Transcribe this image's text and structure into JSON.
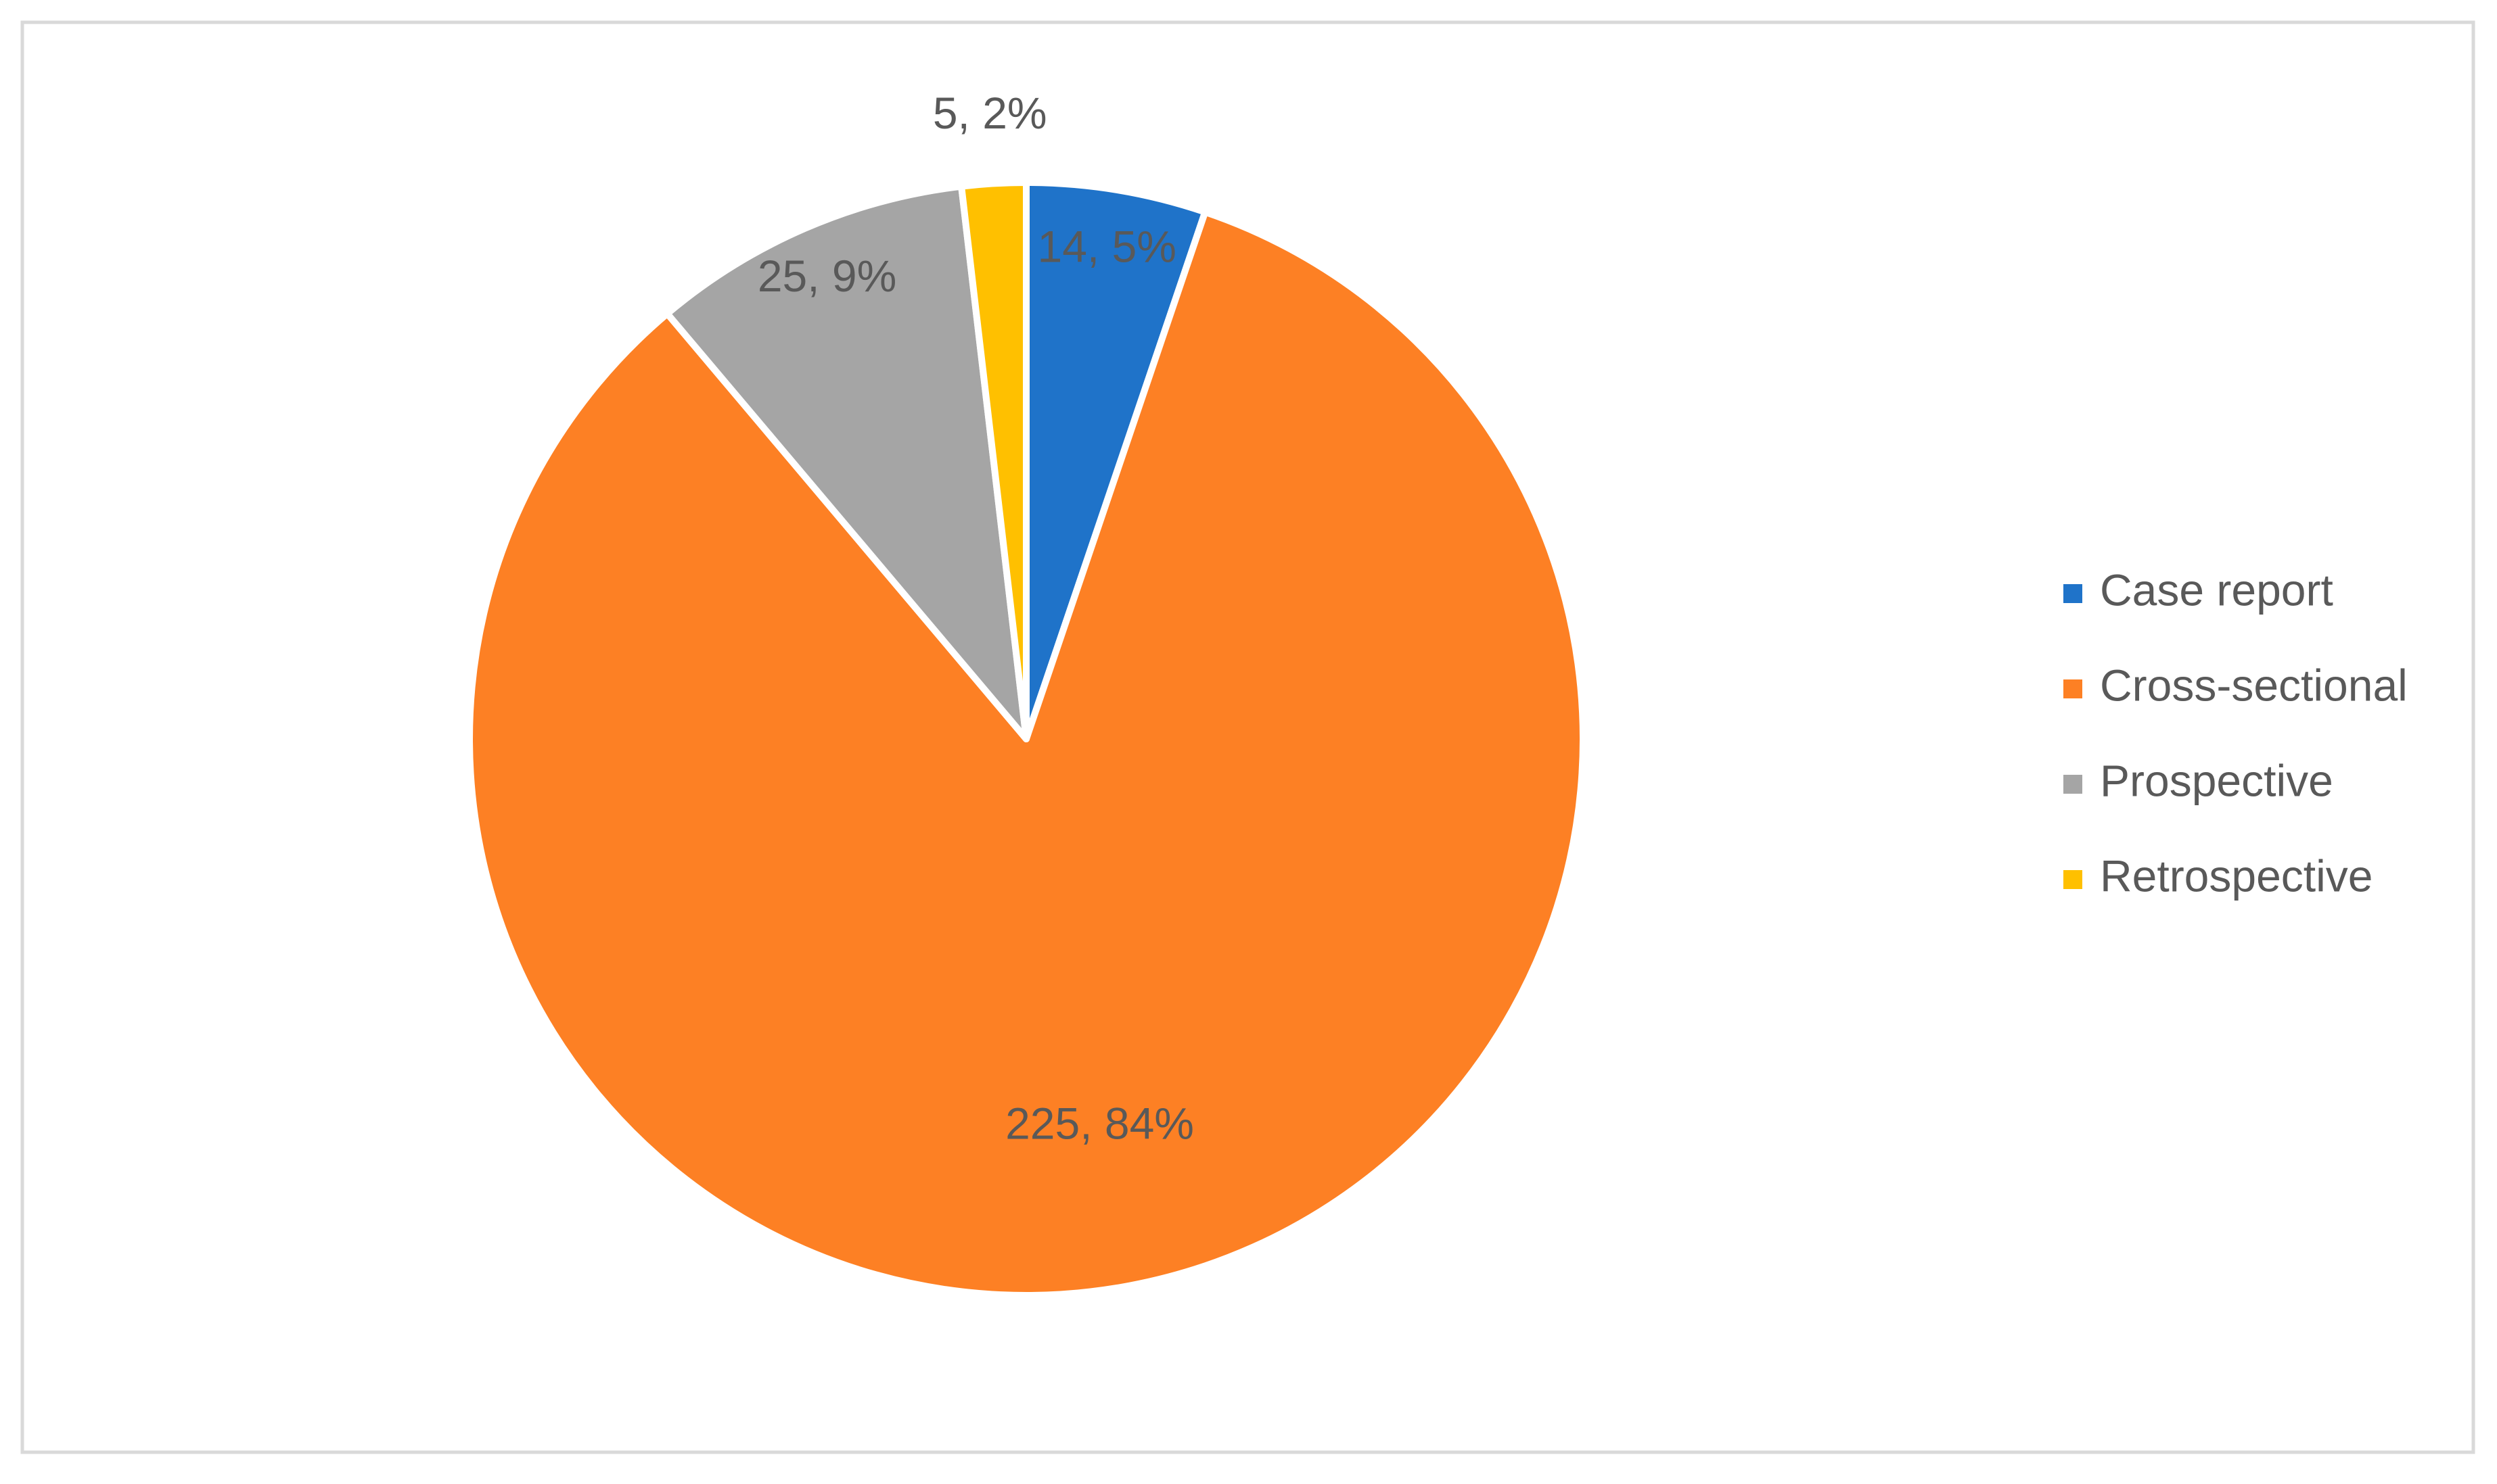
{
  "chart_data": {
    "type": "pie",
    "categories": [
      "Case report",
      "Cross-sectional",
      "Prospective",
      "Retrospective"
    ],
    "values": [
      14,
      225,
      25,
      5
    ],
    "value_labels": [
      "14, 5%",
      "225, 84%",
      "25, 9%",
      "5, 2%"
    ],
    "colors": [
      "#1f73c9",
      "#fd8024",
      "#a5a5a5",
      "#ffc000"
    ],
    "legend": "right"
  }
}
